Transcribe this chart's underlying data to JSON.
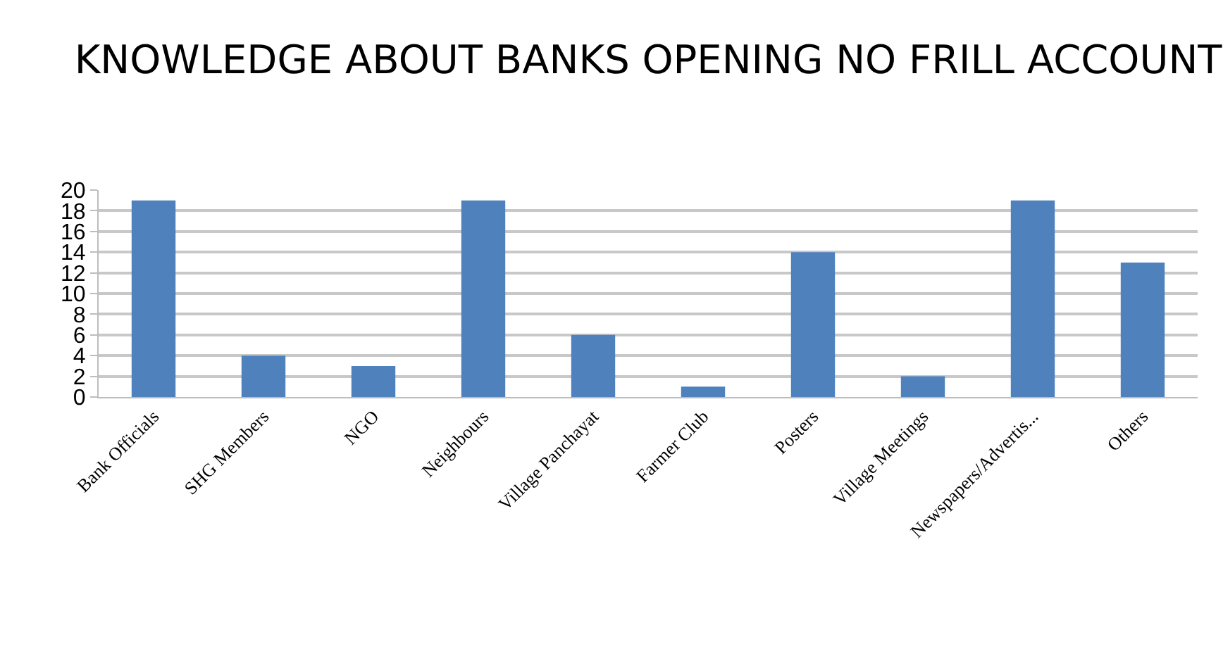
{
  "chart_data": {
    "type": "bar",
    "title": "KNOWLEDGE ABOUT BANKS OPENING NO FRILL ACCOUNT",
    "categories": [
      "Bank Officials",
      "SHG Members",
      "NGO",
      "Neighbours",
      "Village Panchayat",
      "Farmer Club",
      "Posters",
      "Village Meetings",
      "Newspapers/Advertis...",
      "Others"
    ],
    "values": [
      19,
      4,
      3,
      19,
      6,
      1,
      14,
      2,
      19,
      13
    ],
    "color": "#4f81bd",
    "ylim": [
      0,
      20
    ],
    "yticks": [
      0,
      2,
      4,
      6,
      8,
      10,
      12,
      14,
      16,
      18,
      20
    ],
    "grid": "y"
  }
}
